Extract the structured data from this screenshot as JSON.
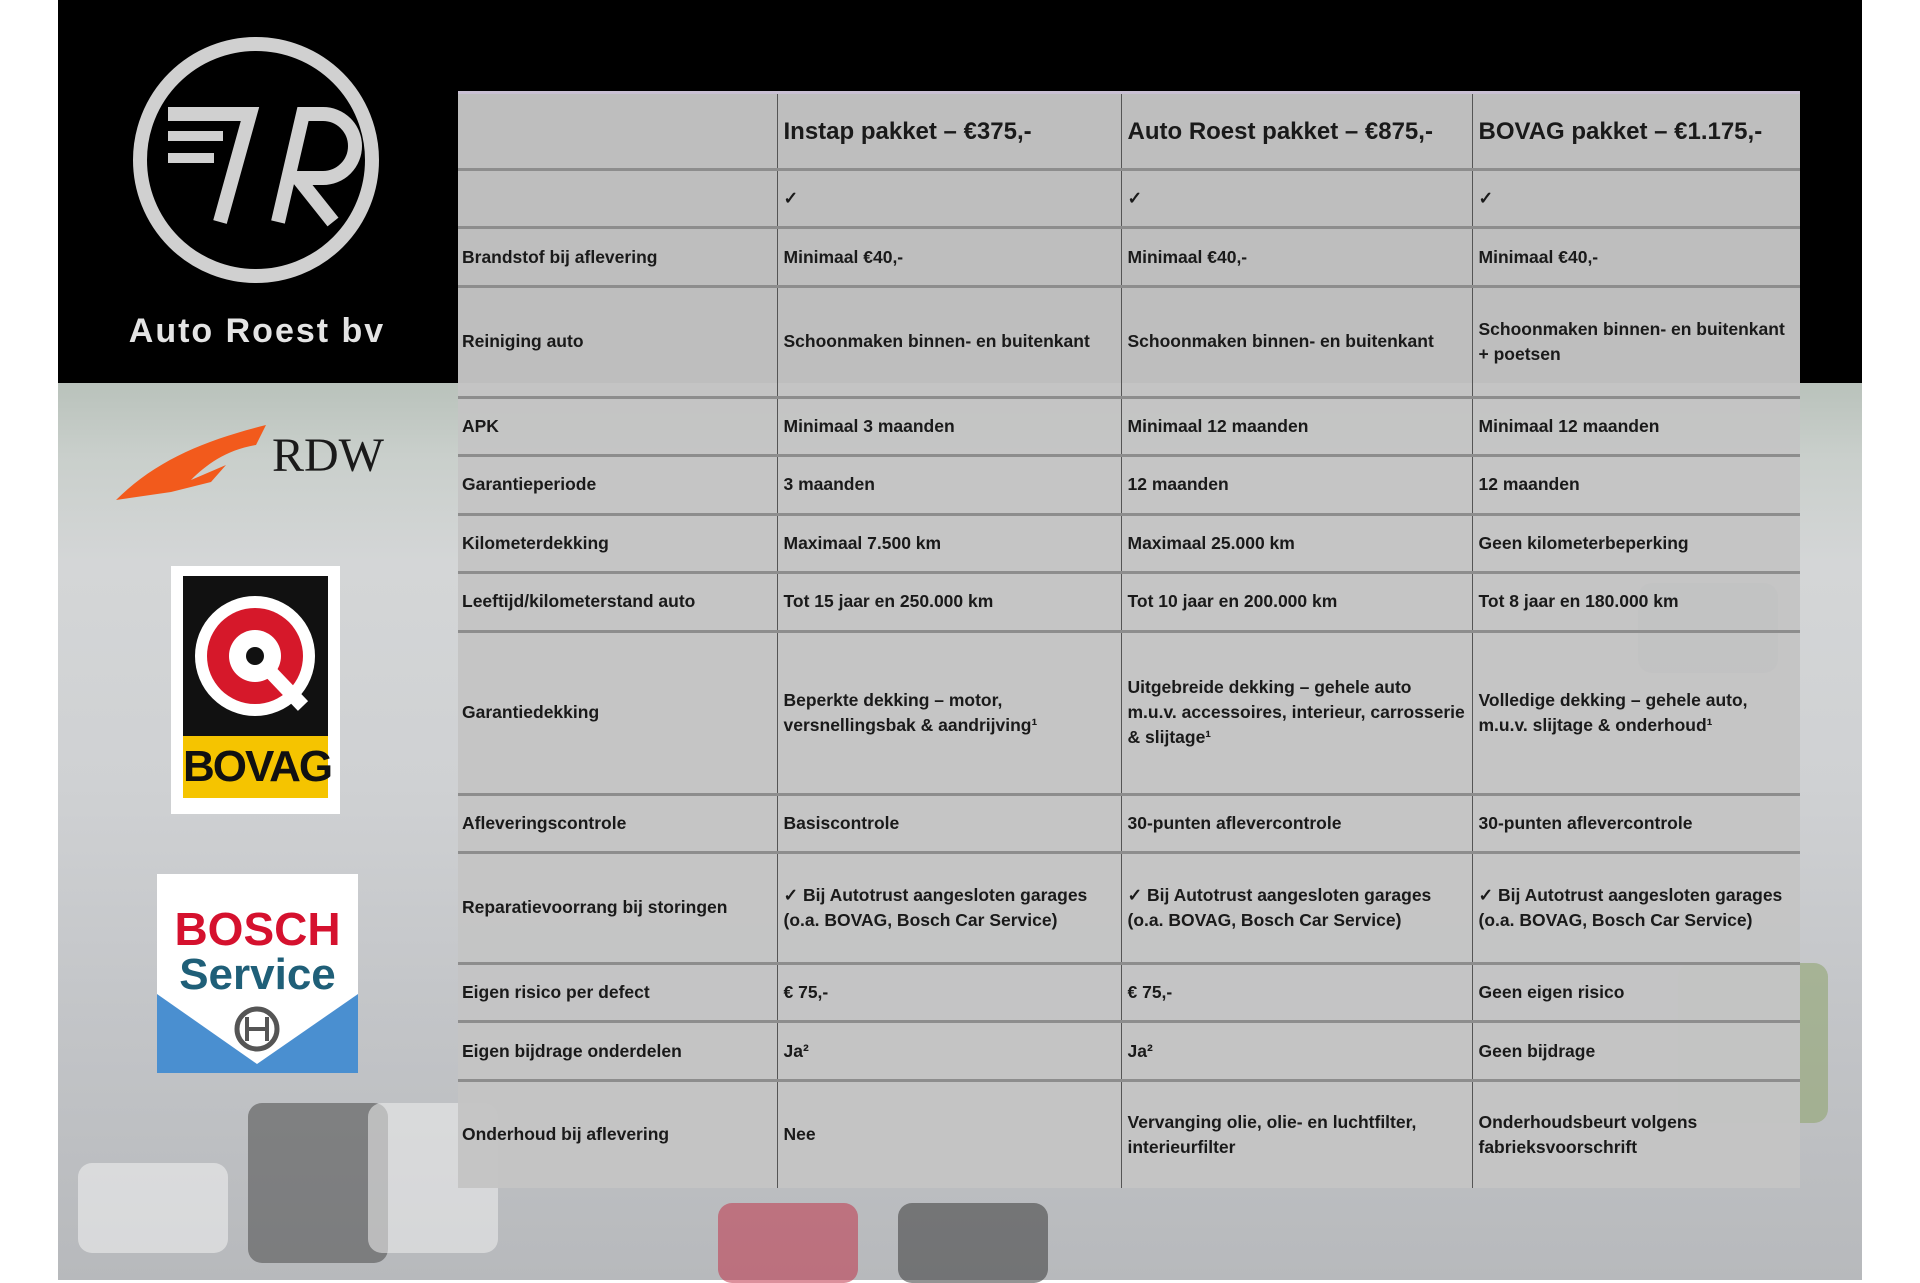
{
  "brand": {
    "name": "Auto Roest bv",
    "logo_letters": "7R"
  },
  "badges": {
    "rdw": "RDW",
    "bovag": "BOVAG",
    "bosch_line1": "BOSCH",
    "bosch_line2": "Service"
  },
  "table": {
    "headers": [
      "",
      "Instap pakket – €375,-",
      "Auto Roest pakket – €875,-",
      "BOVAG pakket – €1.175,-"
    ],
    "rows": [
      [
        "",
        "✓",
        "✓",
        "✓"
      ],
      [
        "Brandstof bij aflevering",
        "Minimaal €40,-",
        "Minimaal €40,-",
        "Minimaal €40,-"
      ],
      [
        "Reiniging auto",
        "Schoonmaken binnen- en buitenkant",
        "Schoonmaken binnen- en buitenkant",
        "Schoonmaken binnen- en buitenkant + poetsen"
      ],
      [
        "APK",
        "Minimaal 3 maanden",
        "Minimaal 12 maanden",
        "Minimaal 12 maanden"
      ],
      [
        "Garantieperiode",
        "3 maanden",
        "12 maanden",
        "12 maanden"
      ],
      [
        "Kilometerdekking",
        "Maximaal 7.500 km",
        "Maximaal 25.000 km",
        "Geen kilometerbeperking"
      ],
      [
        "Leeftijd/kilometerstand auto",
        "Tot 15 jaar en 250.000 km",
        "Tot 10 jaar en 200.000 km",
        "Tot 8 jaar en 180.000 km"
      ],
      [
        "Garantiedekking",
        "Beperkte dekking – motor, versnellingsbak & aandrijving¹",
        "Uitgebreide dekking – gehele auto m.u.v. accessoires, interieur, carrosserie & slijtage¹",
        "Volledige dekking – gehele auto, m.u.v. slijtage & onderhoud¹"
      ],
      [
        "Afleveringscontrole",
        "Basiscontrole",
        "30-punten aflevercontrole",
        "30-punten aflevercontrole"
      ],
      [
        "Reparatievoorrang bij storingen",
        "✓ Bij Autotrust aangesloten garages (o.a. BOVAG, Bosch Car Service)",
        "✓ Bij Autotrust aangesloten garages (o.a. BOVAG, Bosch Car Service)",
        "✓ Bij Autotrust aangesloten garages (o.a. BOVAG, Bosch Car Service)"
      ],
      [
        "Eigen risico per defect",
        "€ 75,-",
        "€ 75,-",
        "Geen eigen risico"
      ],
      [
        "Eigen bijdrage onderdelen",
        "Ja²",
        "Ja²",
        "Geen bijdrage"
      ],
      [
        "Onderhoud bij aflevering",
        "Nee",
        "Vervanging olie, olie- en luchtfilter, interieurfilter",
        "Onderhoudsbeurt volgens fabrieksvoorschrift"
      ]
    ]
  }
}
